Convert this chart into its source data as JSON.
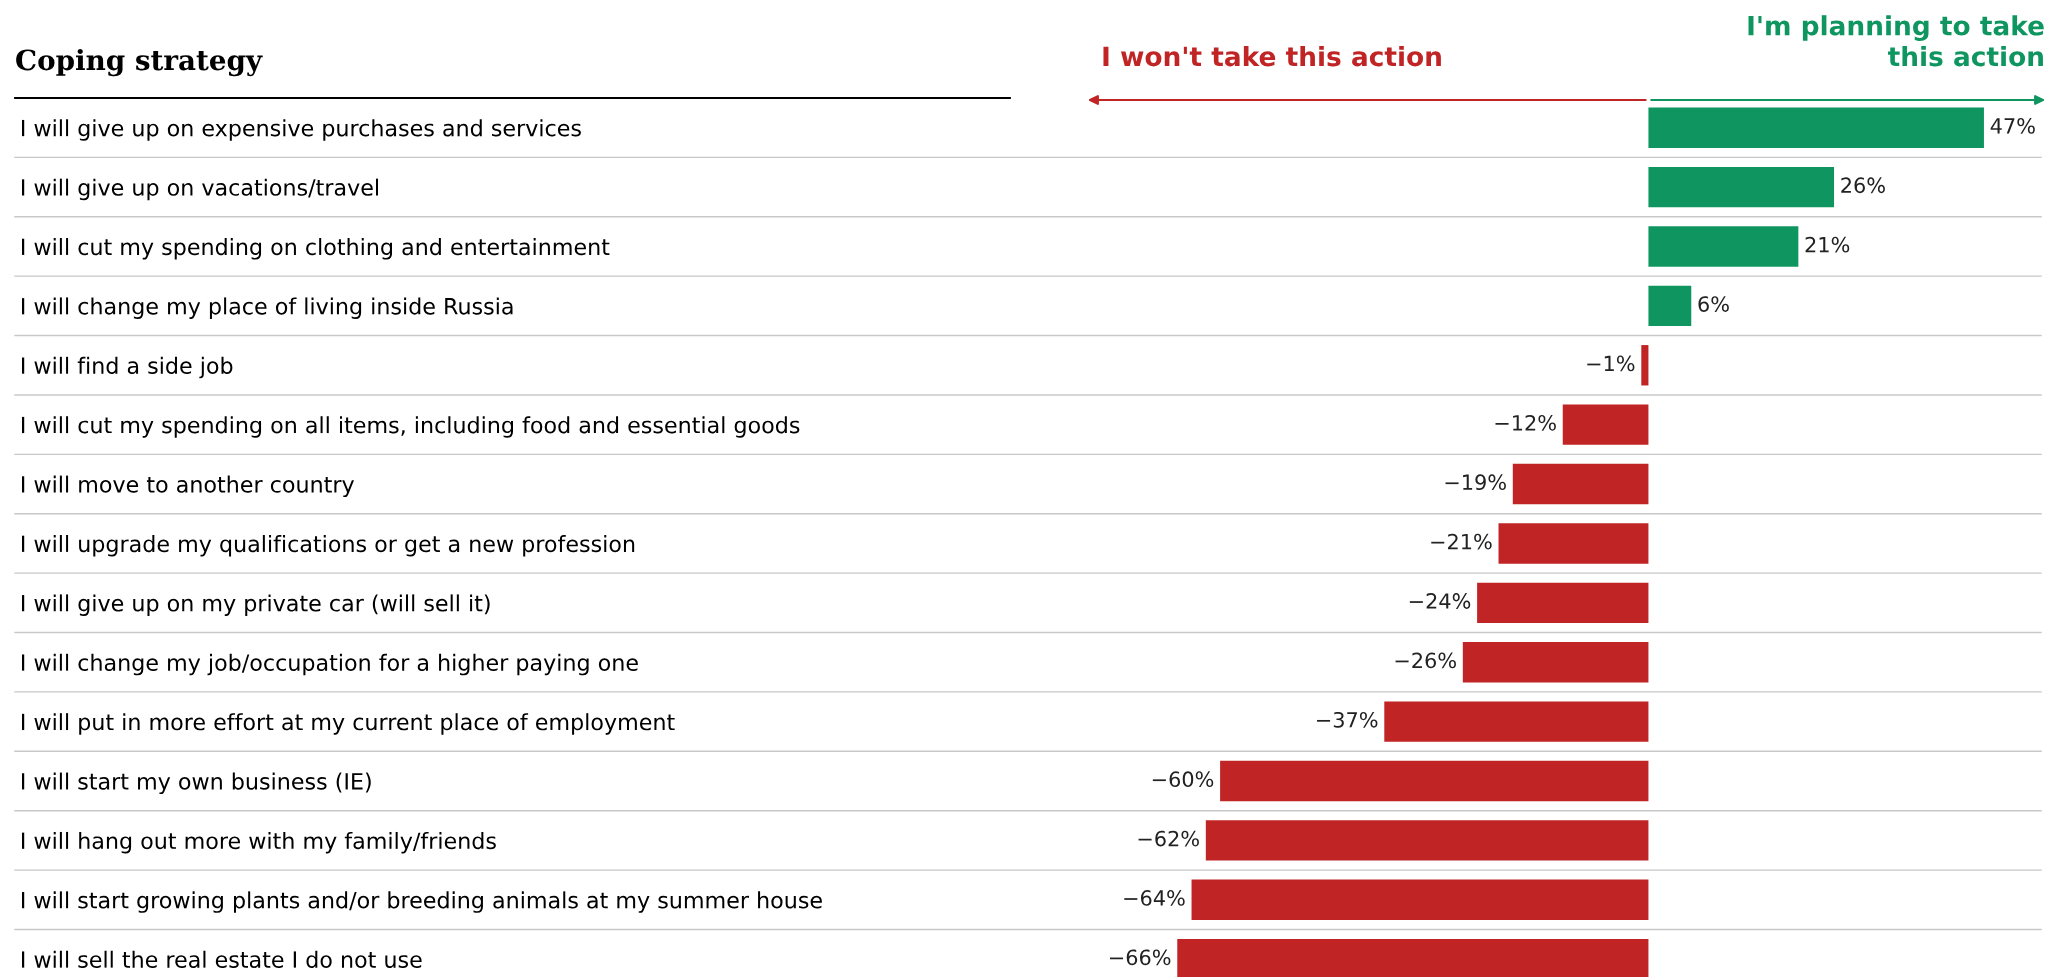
{
  "chart_data": {
    "type": "bar",
    "orientation": "horizontal",
    "title": "Coping strategy",
    "categories": [
      "I will give up on expensive purchases and services",
      "I will give up on vacations/travel",
      "I will cut my spending on clothing and entertainment",
      "I will change my place of living inside Russia",
      "I will find a side job",
      "I will cut my spending on all items, including food and essential goods",
      "I will move to another country",
      "I will upgrade my qualifications or get a new profession",
      "I will give up on my private car (will sell it)",
      "I will change my job/occupation for a higher paying one",
      "I will put in more effort at my current place of employment",
      "I will start my own business (IE)",
      "I will hang out more with my family/friends",
      "I will start growing plants and/or breeding animals at my summer house",
      "I will sell the real estate I do not use"
    ],
    "values": [
      47,
      26,
      21,
      6,
      -1,
      -12,
      -19,
      -21,
      -24,
      -26,
      -37,
      -60,
      -62,
      -64,
      -66
    ],
    "colors": [
      "#0f9660",
      "#0f9660",
      "#0f9660",
      "#0f9660",
      "#c02424",
      "#c02424",
      "#c02424",
      "#c02424",
      "#c02424",
      "#c02424",
      "#c02424",
      "#c02424",
      "#c02424",
      "#c02424",
      "#c02424"
    ],
    "value_labels": [
      "47%",
      "26%",
      "21%",
      "6%",
      "−1%",
      "−12%",
      "−19%",
      "−21%",
      "−24%",
      "−26%",
      "−37%",
      "−60%",
      "−62%",
      "−64%",
      "−66%"
    ],
    "annotations": [
      "I won't take this action",
      "I'm planning to take\nthis action"
    ],
    "tick_labels": "y",
    "grid": "y",
    "legend": false
  }
}
